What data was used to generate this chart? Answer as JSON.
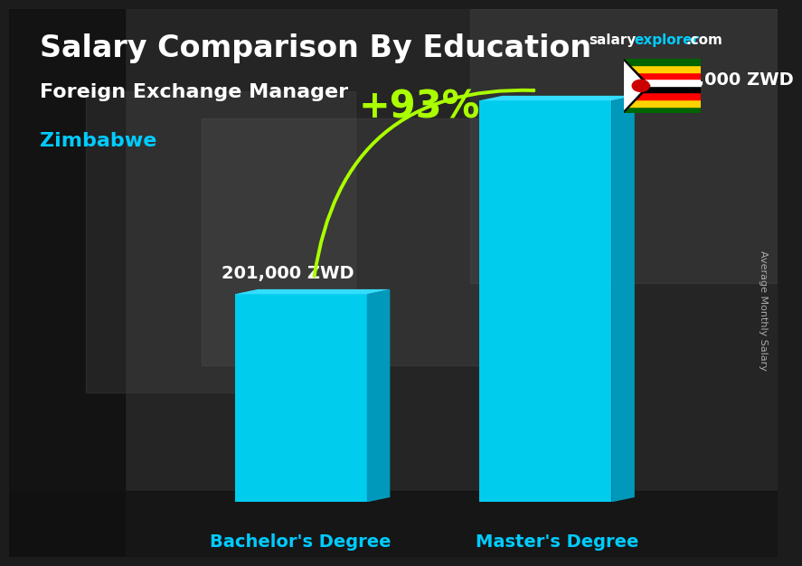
{
  "title": "Salary Comparison By Education",
  "subtitle": "Foreign Exchange Manager",
  "country": "Zimbabwe",
  "categories": [
    "Bachelor's Degree",
    "Master's Degree"
  ],
  "values": [
    201000,
    388000
  ],
  "value_labels": [
    "201,000 ZWD",
    "388,000 ZWD"
  ],
  "pct_change": "+93%",
  "bar_color_front": "#00ccee",
  "bar_color_side": "#0099bb",
  "bar_color_top": "#33ddff",
  "bg_dark": "#1a1a1a",
  "bg_mid": "#3a3a3a",
  "title_color": "#ffffff",
  "subtitle_color": "#ffffff",
  "country_color": "#00ccff",
  "value_label_color": "#ffffff",
  "category_label_color": "#00ccff",
  "pct_color": "#aaff00",
  "arrow_color": "#aaff00",
  "site_salary_color": "#ffffff",
  "site_explorer_color": "#00ccff",
  "ylabel_text": "Average Monthly Salary",
  "ylabel_color": "#aaaaaa",
  "ylim": [
    0,
    450000
  ],
  "title_fontsize": 24,
  "subtitle_fontsize": 16,
  "country_fontsize": 16,
  "value_fontsize": 14,
  "category_fontsize": 14,
  "pct_fontsize": 30,
  "site_fontsize": 11
}
